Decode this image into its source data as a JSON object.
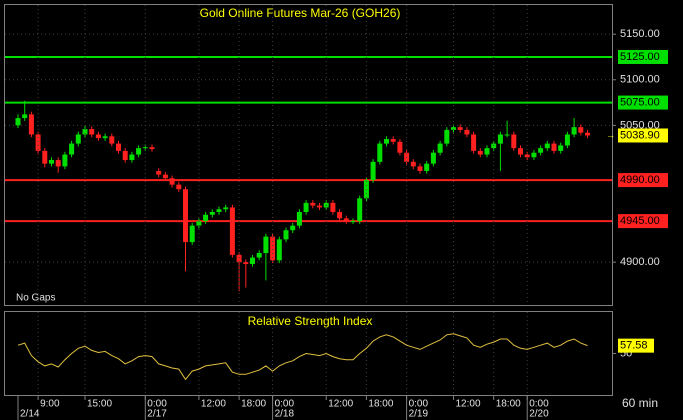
{
  "chart_data": [
    {
      "type": "candlestick",
      "title": "Gold Online Futures Mar-26 (GOH26)",
      "note": "No Gaps",
      "open": [
        5050,
        5058,
        5062,
        5040,
        5022,
        5008,
        5012,
        5005,
        5018,
        5030,
        5040,
        5046,
        5040,
        5036,
        5038,
        5030,
        5022,
        5012,
        5018,
        5025,
        5026,
        5000,
        4996,
        4992,
        4985,
        4980,
        4922,
        4940,
        4945,
        4952,
        4955,
        4958,
        4960,
        4908,
        4900,
        4898,
        4905,
        4910,
        4928,
        4902,
        4925,
        4935,
        4940,
        4955,
        4965,
        4962,
        4960,
        4965,
        4955,
        4948,
        4945,
        4945,
        4970,
        4990,
        5010,
        5030,
        5035,
        5032,
        5020,
        5010,
        5005,
        5000,
        5008,
        5020,
        5030,
        5045,
        5048,
        5045,
        5040,
        5022,
        5018,
        5025,
        5030,
        5040,
        5040,
        5025,
        5018,
        5015,
        5020,
        5025,
        5030,
        5022,
        5028,
        5040,
        5048,
        5042
      ],
      "high": [
        5062,
        5077,
        5065,
        5043,
        5025,
        5015,
        5015,
        5021,
        5033,
        5043,
        5050,
        5049,
        5043,
        5041,
        5041,
        5033,
        5025,
        5021,
        5028,
        5029,
        5029,
        5003,
        4999,
        4995,
        4988,
        4983,
        4943,
        4948,
        4955,
        4958,
        4961,
        4963,
        4963,
        4911,
        4903,
        4908,
        4913,
        4931,
        4931,
        4928,
        4938,
        4943,
        4958,
        4968,
        4968,
        4965,
        4968,
        4968,
        4958,
        4951,
        4948,
        4973,
        4993,
        5013,
        5033,
        5038,
        5038,
        5035,
        5023,
        5013,
        5008,
        5011,
        5023,
        5033,
        5048,
        5051,
        5051,
        5048,
        5043,
        5025,
        5028,
        5033,
        5043,
        5055,
        5043,
        5028,
        5021,
        5023,
        5028,
        5033,
        5033,
        5031,
        5043,
        5058,
        5051,
        5045
      ],
      "low": [
        5047,
        5055,
        5037,
        5018,
        5004,
        5005,
        4998,
        5002,
        5015,
        5027,
        5037,
        5037,
        5033,
        5033,
        5027,
        5019,
        5009,
        5009,
        5015,
        5022,
        5021,
        4993,
        4989,
        4982,
        4977,
        4890,
        4919,
        4937,
        4942,
        4949,
        4952,
        4955,
        4905,
        4868,
        4872,
        4895,
        4902,
        4880,
        4899,
        4899,
        4922,
        4932,
        4937,
        4952,
        4959,
        4957,
        4957,
        4952,
        4945,
        4942,
        4942,
        4942,
        4967,
        4987,
        5007,
        5027,
        5029,
        5017,
        5007,
        5002,
        4997,
        4997,
        5005,
        5017,
        5027,
        5042,
        5042,
        5037,
        5019,
        5015,
        5015,
        5022,
        5000,
        5037,
        5022,
        5015,
        5012,
        5012,
        5017,
        5022,
        5019,
        5019,
        5025,
        5037,
        5039,
        5036
      ],
      "close": [
        5058,
        5062,
        5040,
        5022,
        5008,
        5012,
        5005,
        5018,
        5030,
        5040,
        5046,
        5040,
        5036,
        5038,
        5030,
        5022,
        5012,
        5018,
        5025,
        5026,
        5024,
        4996,
        4992,
        4985,
        4980,
        4922,
        4940,
        4945,
        4952,
        4955,
        4958,
        4960,
        4908,
        4900,
        4898,
        4905,
        4910,
        4928,
        4902,
        4925,
        4935,
        4940,
        4955,
        4965,
        4962,
        4960,
        4965,
        4955,
        4948,
        4945,
        4945,
        4970,
        4990,
        5010,
        5030,
        5035,
        5032,
        5020,
        5010,
        5005,
        5000,
        5008,
        5020,
        5030,
        5045,
        5048,
        5045,
        5040,
        5022,
        5018,
        5025,
        5030,
        5040,
        5040,
        5025,
        5018,
        5015,
        5020,
        5025,
        5030,
        5022,
        5028,
        5040,
        5048,
        5042,
        5038.9
      ],
      "last_price_label": "5038.90",
      "up_color": "#00e000",
      "down_color": "#ff2020",
      "ylim": [
        4853,
        5182
      ],
      "yticks": [
        {
          "value": 5150,
          "label": "5150.00"
        },
        {
          "value": 5100,
          "label": "5100.00"
        },
        {
          "value": 5050,
          "label": "5050.00"
        },
        {
          "value": 4900,
          "label": "4900.00"
        }
      ],
      "levels": [
        {
          "value": 5125,
          "label": "5125.00",
          "color": "#00e000"
        },
        {
          "value": 5075,
          "label": "5075.00",
          "color": "#00e000"
        },
        {
          "value": 4990,
          "label": "4990.00",
          "color": "#ff2020"
        },
        {
          "value": 4945,
          "label": "4945.00",
          "color": "#ff2020"
        }
      ],
      "grid": true
    },
    {
      "type": "line",
      "title": "Relative Strength Index",
      "color": "#e0c040",
      "interval": "60 min",
      "values": [
        58,
        60,
        48,
        42,
        38,
        40,
        37,
        44,
        50,
        55,
        57,
        53,
        51,
        52,
        48,
        45,
        40,
        43,
        47,
        48,
        47,
        40,
        38,
        36,
        35,
        25,
        33,
        35,
        38,
        39,
        40,
        41,
        32,
        30,
        30,
        32,
        34,
        38,
        33,
        38,
        41,
        43,
        47,
        50,
        49,
        48,
        50,
        47,
        45,
        44,
        44,
        50,
        55,
        62,
        66,
        68,
        66,
        62,
        58,
        56,
        54,
        57,
        60,
        63,
        68,
        69,
        67,
        65,
        58,
        56,
        59,
        61,
        64,
        64,
        58,
        55,
        54,
        56,
        58,
        60,
        56,
        58,
        62,
        64,
        60,
        57.58
      ],
      "last_value_label": "57.58",
      "ylim": [
        10,
        90
      ],
      "yticks": [
        50
      ],
      "xticks": [
        {
          "value": 3,
          "label": "9:00"
        },
        {
          "value": 10,
          "label": "15:00"
        },
        {
          "value": 19,
          "label": "0:00"
        },
        {
          "value": 27,
          "label": "12:00"
        },
        {
          "value": 33,
          "label": "18:00"
        },
        {
          "value": 38,
          "label": "0:00"
        },
        {
          "value": 46,
          "label": "12:00"
        },
        {
          "value": 52,
          "label": "18:00"
        },
        {
          "value": 58,
          "label": "0:00"
        },
        {
          "value": 65,
          "label": "12:00"
        },
        {
          "value": 71,
          "label": "18:00"
        },
        {
          "value": 76,
          "label": "0:00"
        }
      ],
      "date_ticks": [
        {
          "value": 0,
          "label": "2/14"
        },
        {
          "value": 19,
          "label": "2/17"
        },
        {
          "value": 38,
          "label": "2/18"
        },
        {
          "value": 58,
          "label": "2/19"
        },
        {
          "value": 76,
          "label": "2/20"
        }
      ]
    }
  ]
}
